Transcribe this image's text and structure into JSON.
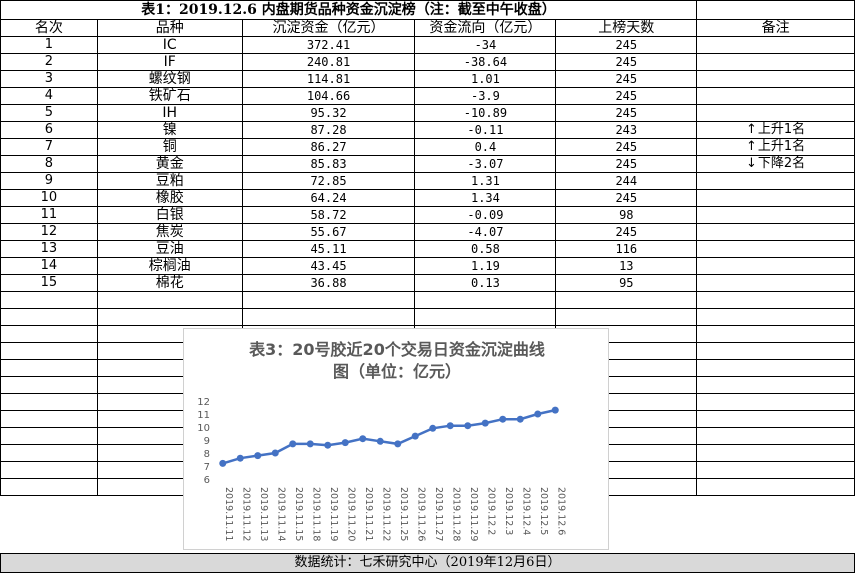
{
  "title": "表1：2019.12.6 内盘期货品种资金沉淀榜（注：截至中午收盘）",
  "headers": [
    "名次",
    "品种",
    "沉淀资金（亿元）",
    "资金流向（亿元）",
    "上榜天数",
    "备注"
  ],
  "rows": [
    {
      "rank": "1",
      "name": "IC",
      "capital": "372.41",
      "flow": "-34",
      "days": "245",
      "note": ""
    },
    {
      "rank": "2",
      "name": "IF",
      "capital": "240.81",
      "flow": "-38.64",
      "days": "245",
      "note": ""
    },
    {
      "rank": "3",
      "name": "螺纹钢",
      "capital": "114.81",
      "flow": "1.01",
      "days": "245",
      "note": ""
    },
    {
      "rank": "4",
      "name": "铁矿石",
      "capital": "104.66",
      "flow": "-3.9",
      "days": "245",
      "note": ""
    },
    {
      "rank": "5",
      "name": "IH",
      "capital": "95.32",
      "flow": "-10.89",
      "days": "245",
      "note": ""
    },
    {
      "rank": "6",
      "name": "镍",
      "capital": "87.28",
      "flow": "-0.11",
      "days": "243",
      "note": "上升1名",
      "arrow": "↑"
    },
    {
      "rank": "7",
      "name": "铜",
      "capital": "86.27",
      "flow": "0.4",
      "days": "245",
      "note": "上升1名",
      "arrow": "↑"
    },
    {
      "rank": "8",
      "name": "黄金",
      "capital": "85.83",
      "flow": "-3.07",
      "days": "245",
      "note": "下降2名",
      "arrow": "↓"
    },
    {
      "rank": "9",
      "name": "豆粕",
      "capital": "72.85",
      "flow": "1.31",
      "days": "244",
      "note": ""
    },
    {
      "rank": "10",
      "name": "橡胶",
      "capital": "64.24",
      "flow": "1.34",
      "days": "245",
      "note": ""
    },
    {
      "rank": "11",
      "name": "白银",
      "capital": "58.72",
      "flow": "-0.09",
      "days": "98",
      "note": ""
    },
    {
      "rank": "12",
      "name": "焦炭",
      "capital": "55.67",
      "flow": "-4.07",
      "days": "245",
      "note": ""
    },
    {
      "rank": "13",
      "name": "豆油",
      "capital": "45.11",
      "flow": "0.58",
      "days": "116",
      "note": ""
    },
    {
      "rank": "14",
      "name": "棕榈油",
      "capital": "43.45",
      "flow": "1.19",
      "days": "13",
      "note": ""
    },
    {
      "rank": "15",
      "name": "棉花",
      "capital": "36.88",
      "flow": "0.13",
      "days": "95",
      "note": ""
    }
  ],
  "chart": {
    "title_line1": "表3：20号胶近20个交易日资金沉淀曲线",
    "title_line2": "图（单位：亿元）"
  },
  "chart_data": {
    "type": "line",
    "title": "表3：20号胶近20个交易日资金沉淀曲线图（单位：亿元）",
    "x": [
      "2019.11.11",
      "2019.11.12",
      "2019.11.13",
      "2019.11.14",
      "2019.11.15",
      "2019.11.18",
      "2019.11.19",
      "2019.11.20",
      "2019.11.21",
      "2019.11.22",
      "2019.11.25",
      "2019.11.26",
      "2019.11.27",
      "2019.11.28",
      "2019.11.29",
      "2019.12.2",
      "2019.12.3",
      "2019.12.4",
      "2019.12.5",
      "2019.12.6"
    ],
    "values": [
      7.2,
      7.6,
      7.8,
      8.0,
      8.7,
      8.7,
      8.6,
      8.8,
      9.1,
      8.9,
      8.7,
      9.3,
      9.9,
      10.1,
      10.1,
      10.3,
      10.6,
      10.6,
      11.0,
      11.3
    ],
    "ylim": [
      6,
      12
    ],
    "yticks": [
      "6",
      "7",
      "8",
      "9",
      "10",
      "11",
      "12"
    ],
    "color": "#4472c4",
    "grid": false,
    "legend": "none"
  },
  "footer": "数据统计：七禾研究中心（2019年12月6日）"
}
